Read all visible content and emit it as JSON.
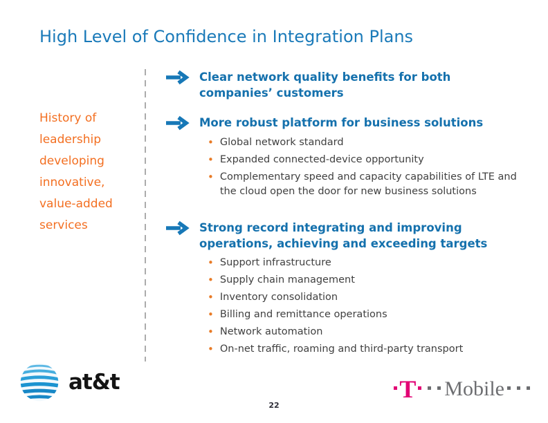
{
  "colors": {
    "title_blue": "#1a7ab9",
    "heading_blue": "#1571ad",
    "arrow_blue": "#1778b7",
    "accent_orange": "#f36f21",
    "bullet_orange": "#e87a25",
    "body_text": "#404040",
    "divider_gray": "#ababab",
    "att_blue": "#2196d3",
    "tmobile_magenta": "#e20074",
    "logo_gray": "#6d6e71"
  },
  "slide": {
    "title": "High Level of Confidence in Integration Plans",
    "sidebar_statement": "History of leadership developing innovative, value-added services",
    "sections": [
      {
        "heading": "Clear network quality benefits for both companies’ customers",
        "bullets": []
      },
      {
        "heading": "More robust platform for business solutions",
        "bullets": [
          "Global network standard",
          "Expanded connected-device opportunity",
          "Complementary speed and capacity capabilities of LTE and the cloud open the door for new business solutions"
        ]
      },
      {
        "heading": "Strong record integrating and improving operations, achieving and exceeding targets",
        "bullets": [
          "Support infrastructure",
          "Supply chain management",
          "Inventory consolidation",
          "Billing and remittance operations",
          "Network automation",
          "On-net traffic, roaming and third-party transport"
        ]
      }
    ],
    "footer": {
      "att_wordmark": "at&t",
      "tmobile_t": "T",
      "tmobile_word": "Mobile",
      "page_number": "22"
    }
  }
}
